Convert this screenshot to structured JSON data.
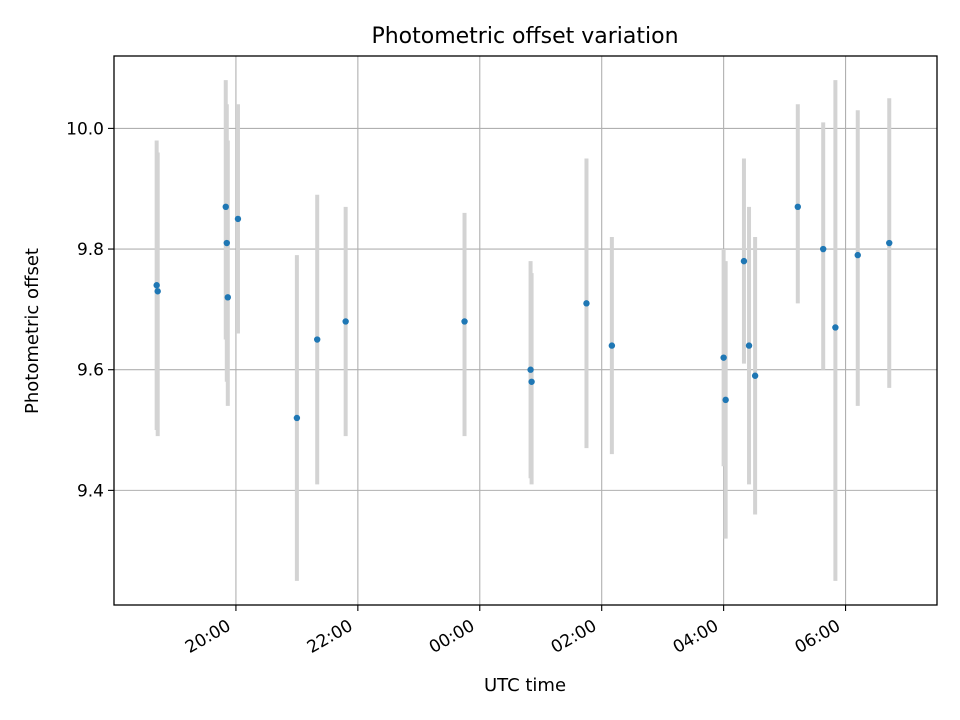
{
  "chart_data": {
    "type": "scatter",
    "title": "Photometric offset variation",
    "xlabel": "UTC time",
    "ylabel": "Photometric offset",
    "grid": true,
    "xlim": [
      "2024-01-01T18:00",
      "2024-01-02T07:30"
    ],
    "ylim": [
      9.21,
      10.12
    ],
    "xticks": [
      {
        "t": "2024-01-01T20:00",
        "label": "20:00"
      },
      {
        "t": "2024-01-01T22:00",
        "label": "22:00"
      },
      {
        "t": "2024-01-02T00:00",
        "label": "00:00"
      },
      {
        "t": "2024-01-02T02:00",
        "label": "02:00"
      },
      {
        "t": "2024-01-02T04:00",
        "label": "04:00"
      },
      {
        "t": "2024-01-02T06:00",
        "label": "06:00"
      }
    ],
    "yticks": [
      9.4,
      9.6,
      9.8,
      10.0
    ],
    "ytick_labels": [
      "9.4",
      "9.6",
      "9.8",
      "10.0"
    ],
    "colors": {
      "points": "#1f77b4",
      "errorbars": "#d3d3d3",
      "grid": "#b0b0b0"
    },
    "series": [
      {
        "points": [
          {
            "t": "2024-01-01T18:42",
            "y": 9.74,
            "lo": 9.5,
            "hi": 9.98
          },
          {
            "t": "2024-01-01T18:43",
            "y": 9.73,
            "lo": 9.49,
            "hi": 9.96
          },
          {
            "t": "2024-01-01T19:50",
            "y": 9.87,
            "lo": 9.65,
            "hi": 10.08
          },
          {
            "t": "2024-01-01T19:51",
            "y": 9.81,
            "lo": 9.58,
            "hi": 10.04
          },
          {
            "t": "2024-01-01T19:52",
            "y": 9.72,
            "lo": 9.54,
            "hi": 9.98
          },
          {
            "t": "2024-01-01T20:02",
            "y": 9.85,
            "lo": 9.66,
            "hi": 10.04
          },
          {
            "t": "2024-01-01T21:00",
            "y": 9.52,
            "lo": 9.25,
            "hi": 9.79
          },
          {
            "t": "2024-01-01T21:20",
            "y": 9.65,
            "lo": 9.41,
            "hi": 9.89
          },
          {
            "t": "2024-01-01T21:48",
            "y": 9.68,
            "lo": 9.49,
            "hi": 9.87
          },
          {
            "t": "2024-01-01T23:45",
            "y": 9.68,
            "lo": 9.49,
            "hi": 9.86
          },
          {
            "t": "2024-01-02T00:50",
            "y": 9.6,
            "lo": 9.42,
            "hi": 9.78
          },
          {
            "t": "2024-01-02T00:51",
            "y": 9.58,
            "lo": 9.41,
            "hi": 9.76
          },
          {
            "t": "2024-01-02T01:45",
            "y": 9.71,
            "lo": 9.47,
            "hi": 9.95
          },
          {
            "t": "2024-01-02T02:10",
            "y": 9.64,
            "lo": 9.46,
            "hi": 9.82
          },
          {
            "t": "2024-01-02T04:00",
            "y": 9.62,
            "lo": 9.44,
            "hi": 9.8
          },
          {
            "t": "2024-01-02T04:02",
            "y": 9.55,
            "lo": 9.32,
            "hi": 9.78
          },
          {
            "t": "2024-01-02T04:20",
            "y": 9.78,
            "lo": 9.61,
            "hi": 9.95
          },
          {
            "t": "2024-01-02T04:25",
            "y": 9.64,
            "lo": 9.41,
            "hi": 9.87
          },
          {
            "t": "2024-01-02T04:31",
            "y": 9.59,
            "lo": 9.36,
            "hi": 9.82
          },
          {
            "t": "2024-01-02T05:13",
            "y": 9.87,
            "lo": 9.71,
            "hi": 10.04
          },
          {
            "t": "2024-01-02T05:38",
            "y": 9.8,
            "lo": 9.6,
            "hi": 10.01
          },
          {
            "t": "2024-01-02T05:50",
            "y": 9.67,
            "lo": 9.25,
            "hi": 10.08
          },
          {
            "t": "2024-01-02T06:12",
            "y": 9.79,
            "lo": 9.54,
            "hi": 10.03
          },
          {
            "t": "2024-01-02T06:43",
            "y": 9.81,
            "lo": 9.57,
            "hi": 10.05
          }
        ]
      }
    ]
  }
}
